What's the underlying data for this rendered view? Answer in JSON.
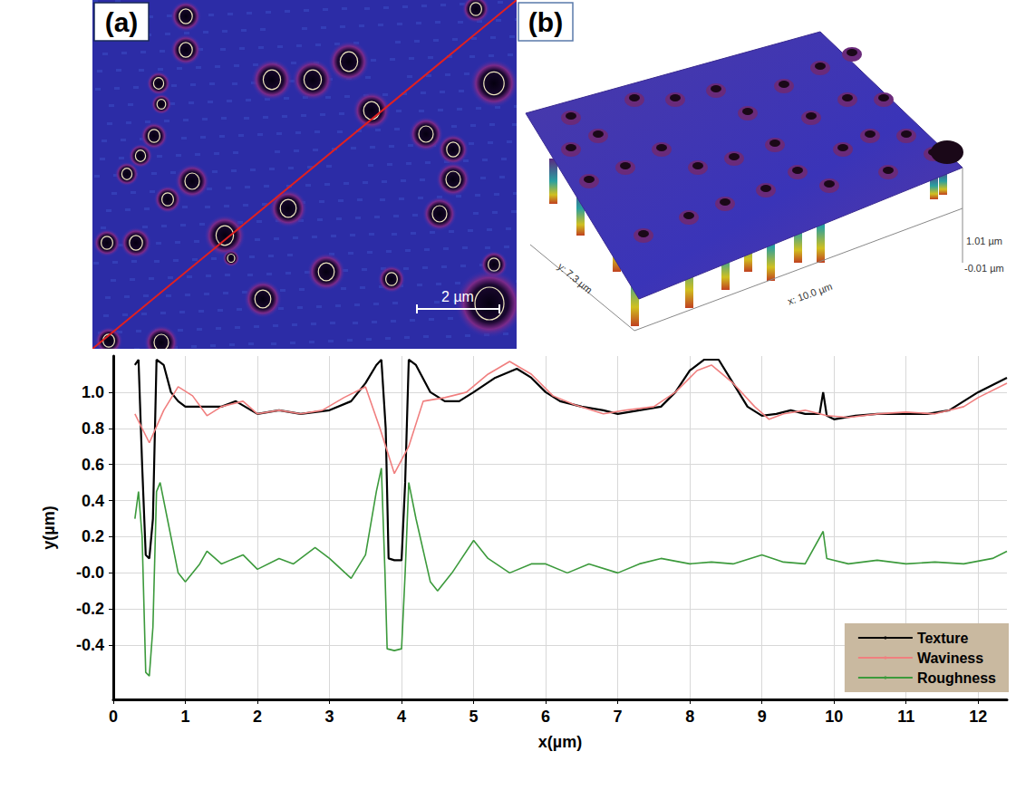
{
  "panels": [
    {
      "label": "(a)",
      "scale_bar": "2 µm"
    },
    {
      "label": "(b)",
      "z_max_label": "1.01 µm",
      "z_min_label": "-0.01 µm",
      "y_label": "y: 7.3 µm",
      "x_label": "x: 10.0 µm"
    }
  ],
  "chart_data": {
    "type": "line",
    "x_label": "x(µm)",
    "y_label": "y(µm)",
    "xlim": [
      0,
      12.4
    ],
    "xticks": [
      0,
      1,
      2,
      3,
      4,
      5,
      6,
      7,
      8,
      9,
      10,
      11,
      12
    ],
    "ylim": [
      -0.7,
      1.2
    ],
    "yticks": [
      -0.4,
      -0.2,
      {
        "value": 0,
        "label": "-0.0"
      },
      0.2,
      0.4,
      0.6,
      0.8,
      {
        "value": 1,
        "label": "1.0"
      }
    ],
    "grid": true,
    "legend": "lower right",
    "series": [
      {
        "name": "Texture",
        "color": "#000000",
        "x": [
          0.3,
          0.35,
          0.4,
          0.45,
          0.5,
          0.55,
          0.6,
          0.7,
          0.8,
          0.9,
          1.0,
          1.2,
          1.5,
          1.7,
          2.0,
          2.3,
          2.6,
          3.0,
          3.3,
          3.5,
          3.65,
          3.72,
          3.78,
          3.82,
          3.9,
          4.0,
          4.05,
          4.1,
          4.2,
          4.4,
          4.6,
          4.8,
          5.0,
          5.3,
          5.6,
          5.8,
          6.0,
          6.2,
          6.5,
          6.8,
          7.0,
          7.3,
          7.6,
          7.8,
          8.0,
          8.2,
          8.4,
          8.6,
          8.8,
          9.0,
          9.2,
          9.4,
          9.6,
          9.8,
          9.85,
          9.9,
          10.0,
          10.3,
          10.6,
          11.0,
          11.3,
          11.6,
          11.8,
          12.0,
          12.2,
          12.4
        ],
        "values": [
          1.15,
          1.18,
          0.6,
          0.1,
          0.08,
          0.3,
          1.18,
          1.15,
          1.0,
          0.95,
          0.92,
          0.92,
          0.92,
          0.95,
          0.88,
          0.9,
          0.88,
          0.9,
          0.95,
          1.05,
          1.15,
          1.18,
          0.8,
          0.08,
          0.07,
          0.07,
          0.5,
          1.18,
          1.15,
          1.0,
          0.95,
          0.95,
          1.0,
          1.08,
          1.13,
          1.08,
          1.0,
          0.95,
          0.92,
          0.9,
          0.88,
          0.9,
          0.92,
          1.0,
          1.12,
          1.18,
          1.18,
          1.05,
          0.92,
          0.87,
          0.88,
          0.9,
          0.88,
          0.88,
          1.0,
          0.87,
          0.85,
          0.87,
          0.88,
          0.88,
          0.88,
          0.9,
          0.95,
          1.0,
          1.04,
          1.08
        ]
      },
      {
        "name": "Waviness",
        "color": "#f07f7f",
        "x": [
          0.3,
          0.5,
          0.7,
          0.9,
          1.1,
          1.3,
          1.5,
          1.8,
          2.0,
          2.3,
          2.6,
          2.9,
          3.2,
          3.5,
          3.7,
          3.9,
          4.1,
          4.3,
          4.6,
          4.9,
          5.2,
          5.5,
          5.8,
          6.1,
          6.4,
          6.8,
          7.1,
          7.5,
          7.8,
          8.1,
          8.3,
          8.6,
          8.9,
          9.1,
          9.3,
          9.6,
          9.9,
          10.2,
          10.6,
          11.0,
          11.4,
          11.8,
          12.0,
          12.4
        ],
        "values": [
          0.88,
          0.72,
          0.9,
          1.03,
          0.98,
          0.87,
          0.92,
          0.95,
          0.88,
          0.9,
          0.88,
          0.9,
          0.97,
          1.03,
          0.8,
          0.55,
          0.7,
          0.95,
          0.97,
          1.0,
          1.1,
          1.17,
          1.1,
          0.98,
          0.93,
          0.88,
          0.9,
          0.92,
          1.0,
          1.12,
          1.15,
          1.05,
          0.92,
          0.85,
          0.88,
          0.9,
          0.87,
          0.86,
          0.88,
          0.89,
          0.88,
          0.92,
          0.97,
          1.05
        ]
      },
      {
        "name": "Roughness",
        "color": "#3c9a3c",
        "x": [
          0.3,
          0.35,
          0.4,
          0.45,
          0.5,
          0.55,
          0.6,
          0.65,
          0.75,
          0.9,
          1.0,
          1.2,
          1.3,
          1.5,
          1.8,
          2.0,
          2.3,
          2.5,
          2.8,
          3.0,
          3.3,
          3.5,
          3.65,
          3.72,
          3.77,
          3.8,
          3.9,
          4.0,
          4.05,
          4.1,
          4.2,
          4.4,
          4.5,
          4.7,
          5.0,
          5.2,
          5.5,
          5.8,
          6.0,
          6.3,
          6.6,
          7.0,
          7.3,
          7.6,
          8.0,
          8.3,
          8.6,
          9.0,
          9.3,
          9.6,
          9.85,
          9.9,
          10.2,
          10.6,
          11.0,
          11.4,
          11.8,
          12.2,
          12.4
        ],
        "values": [
          0.3,
          0.45,
          0.2,
          -0.55,
          -0.57,
          -0.3,
          0.45,
          0.5,
          0.3,
          0.0,
          -0.05,
          0.05,
          0.12,
          0.05,
          0.1,
          0.02,
          0.08,
          0.05,
          0.14,
          0.08,
          -0.03,
          0.1,
          0.45,
          0.58,
          0.0,
          -0.42,
          -0.43,
          -0.42,
          0.0,
          0.5,
          0.3,
          -0.05,
          -0.1,
          0.0,
          0.18,
          0.08,
          0.0,
          0.05,
          0.05,
          0.0,
          0.05,
          0.0,
          0.05,
          0.08,
          0.05,
          0.06,
          0.05,
          0.1,
          0.06,
          0.05,
          0.23,
          0.08,
          0.05,
          0.07,
          0.05,
          0.06,
          0.05,
          0.08,
          0.12
        ]
      }
    ]
  }
}
